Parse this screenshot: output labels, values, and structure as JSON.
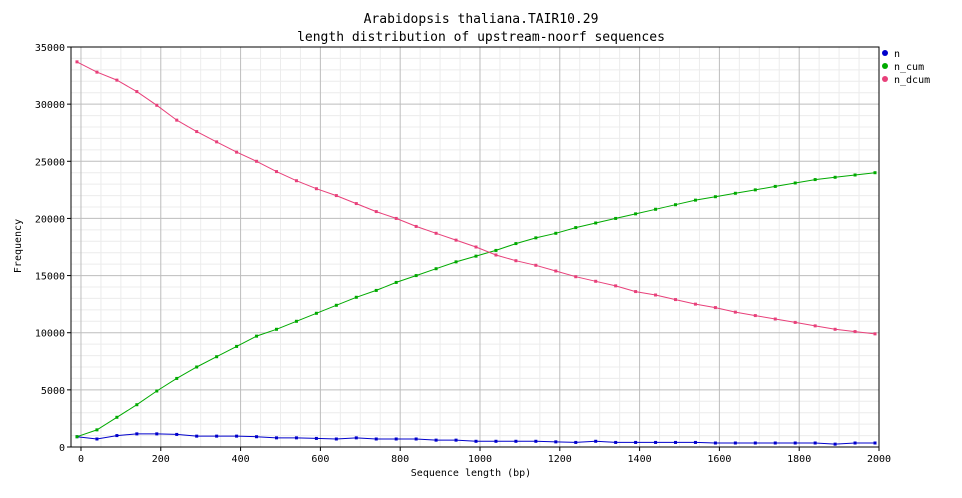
{
  "chart_data": {
    "type": "line",
    "title": "Arabidopsis thaliana.TAIR10.29",
    "subtitle": "length distribution of upstream-noorf sequences",
    "xlabel": "Sequence length (bp)",
    "ylabel": "Frequency",
    "xlim": [
      -25,
      2000
    ],
    "ylim": [
      0,
      35000
    ],
    "xticks": [
      0,
      200,
      400,
      600,
      800,
      1000,
      1200,
      1400,
      1600,
      1800,
      2000
    ],
    "yticks": [
      0,
      5000,
      10000,
      15000,
      20000,
      25000,
      30000,
      35000
    ],
    "grid": true,
    "legend_position": "top-right",
    "x": [
      -10,
      40,
      90,
      140,
      190,
      240,
      290,
      340,
      390,
      440,
      490,
      540,
      590,
      640,
      690,
      740,
      790,
      840,
      890,
      940,
      990,
      1040,
      1090,
      1140,
      1190,
      1240,
      1290,
      1340,
      1390,
      1440,
      1490,
      1540,
      1590,
      1640,
      1690,
      1740,
      1790,
      1840,
      1890,
      1940,
      1990
    ],
    "series": [
      {
        "name": "n",
        "color": "#0000cc",
        "values": [
          900,
          700,
          1000,
          1150,
          1150,
          1100,
          950,
          950,
          950,
          900,
          800,
          800,
          750,
          700,
          800,
          700,
          700,
          700,
          600,
          600,
          500,
          500,
          500,
          500,
          450,
          400,
          500,
          400,
          400,
          400,
          400,
          400,
          350,
          350,
          350,
          350,
          350,
          350,
          250,
          350,
          350
        ]
      },
      {
        "name": "n_cum",
        "color": "#00aa00",
        "values": [
          900,
          1500,
          2600,
          3700,
          4900,
          6000,
          7000,
          7900,
          8800,
          9700,
          10300,
          11000,
          11700,
          12400,
          13100,
          13700,
          14400,
          15000,
          15600,
          16200,
          16700,
          17200,
          17800,
          18300,
          18700,
          19200,
          19600,
          20000,
          20400,
          20800,
          21200,
          21600,
          21900,
          22200,
          22500,
          22800,
          23100,
          23400,
          23600,
          23800,
          24000
        ]
      },
      {
        "name": "n_dcum",
        "color": "#e8407a",
        "values": [
          33700,
          32800,
          32100,
          31100,
          29900,
          28600,
          27600,
          26700,
          25800,
          25000,
          24100,
          23300,
          22600,
          22000,
          21300,
          20600,
          20000,
          19300,
          18700,
          18100,
          17500,
          16800,
          16300,
          15900,
          15400,
          14900,
          14500,
          14100,
          13600,
          13300,
          12900,
          12500,
          12200,
          11800,
          11500,
          11200,
          10900,
          10600,
          10300,
          10100,
          9900
        ]
      }
    ]
  }
}
